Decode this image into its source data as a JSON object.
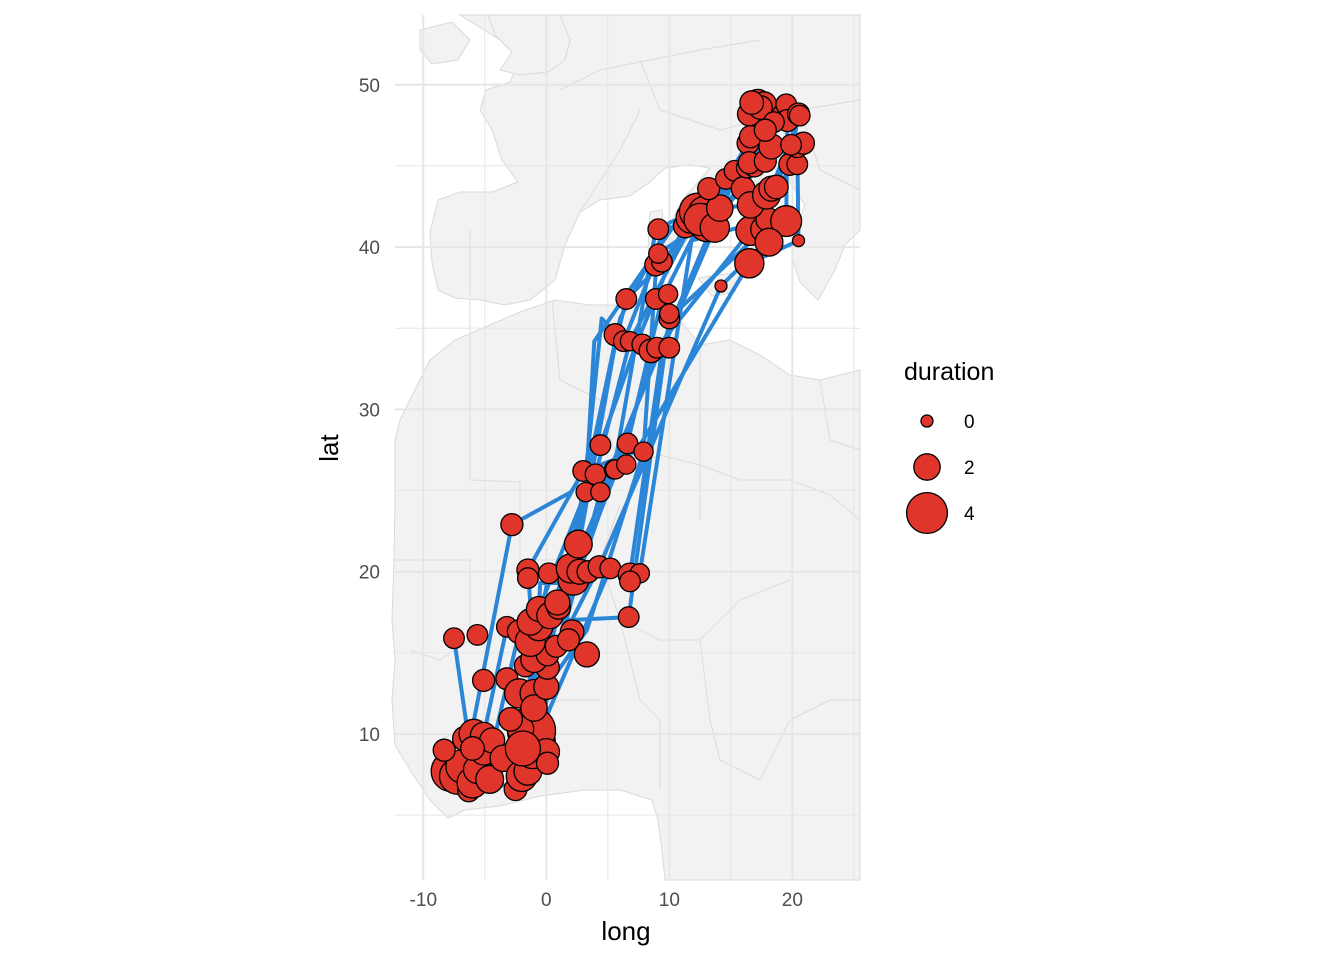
{
  "chart_data": {
    "type": "scatter",
    "subtype": "map with migration tracks",
    "xlabel": "long",
    "ylabel": "lat",
    "xlim": [
      -12.3,
      25.5
    ],
    "ylim": [
      1.0,
      54.3
    ],
    "x_ticks": [
      -10,
      0,
      10,
      20
    ],
    "x_tick_labels": [
      "-10",
      "0",
      "10",
      "20"
    ],
    "y_ticks": [
      10,
      20,
      30,
      40,
      50
    ],
    "y_tick_labels": [
      "10",
      "20",
      "30",
      "40",
      "50"
    ],
    "grid": true,
    "background": "light grey land, white sea",
    "colors": {
      "point_fill": "#e0352b",
      "point_stroke": "#000000",
      "track_line": "#2b86d8",
      "land": "#f2f2f2",
      "border": "#d9d9d9",
      "grid": "#e6e6e6"
    },
    "size_variable": "duration",
    "legend": {
      "title": "duration",
      "position": "right",
      "entries": [
        {
          "label": "0",
          "value": 0
        },
        {
          "label": "2",
          "value": 2
        },
        {
          "label": "4",
          "value": 4
        }
      ]
    },
    "tracks": [
      [
        [
          -1.4,
          8.8
        ],
        [
          -1.0,
          14.6
        ],
        [
          0.3,
          17.3
        ],
        [
          4.0,
          26.0
        ],
        [
          6.8,
          34.2
        ],
        [
          11.9,
          41.5
        ],
        [
          16.3,
          44.9
        ],
        [
          17.2,
          48.9
        ]
      ],
      [
        [
          -5.1,
          9.9
        ],
        [
          -3.2,
          16.6
        ],
        [
          -0.6,
          17.7
        ],
        [
          3.2,
          24.9
        ],
        [
          3.9,
          34.2
        ],
        [
          10.8,
          41.8
        ],
        [
          16.5,
          45.2
        ],
        [
          19.3,
          48.1
        ]
      ],
      [
        [
          -7.5,
          15.9
        ],
        [
          -6.3,
          9.6
        ],
        [
          -5.8,
          8.0
        ],
        [
          -1.9,
          9.1
        ],
        [
          0.9,
          18.1
        ],
        [
          5.5,
          26.3
        ],
        [
          8.9,
          41.1
        ],
        [
          13.1,
          41.5
        ],
        [
          17.8,
          45.3
        ]
      ],
      [
        [
          -6.1,
          10.0
        ],
        [
          -2.8,
          22.9
        ],
        [
          2.0,
          24.9
        ],
        [
          4.4,
          27.8
        ],
        [
          7.4,
          34.2
        ],
        [
          11.3,
          41.3
        ],
        [
          18.3,
          46.2
        ],
        [
          17.4,
          48.6
        ]
      ],
      [
        [
          -7.7,
          7.8
        ],
        [
          -2.5,
          6.6
        ],
        [
          -0.9,
          8.9
        ],
        [
          2.2,
          19.5
        ],
        [
          6.6,
          27.9
        ],
        [
          9.4,
          36.8
        ],
        [
          12.9,
          42.1
        ],
        [
          16.9,
          45.0
        ],
        [
          17.7,
          48.8
        ]
      ],
      [
        [
          -3.5,
          8.5
        ],
        [
          0.0,
          12.9
        ],
        [
          3.3,
          16.4
        ],
        [
          7.9,
          27.4
        ],
        [
          9.0,
          39.6
        ],
        [
          13.1,
          41.4
        ],
        [
          16.0,
          43.6
        ],
        [
          16.5,
          48.2
        ]
      ],
      [
        [
          -6.0,
          7.0
        ],
        [
          -2.1,
          10.3
        ],
        [
          0.2,
          19.9
        ],
        [
          6.8,
          19.8
        ],
        [
          9.4,
          33.6
        ],
        [
          13.7,
          41.2
        ],
        [
          16.6,
          46.8
        ],
        [
          19.5,
          48.8
        ]
      ],
      [
        [
          -6.3,
          6.5
        ],
        [
          -1.1,
          8.9
        ],
        [
          -1.3,
          16.9
        ],
        [
          6.7,
          17.2
        ],
        [
          10.0,
          35.6
        ],
        [
          17.7,
          41.1
        ],
        [
          18.3,
          43.6
        ],
        [
          20.6,
          48.1
        ]
      ],
      [
        [
          -5.1,
          8.9
        ],
        [
          -0.6,
          10.0
        ],
        [
          5.2,
          20.2
        ],
        [
          7.6,
          19.9
        ],
        [
          11.8,
          40.4
        ],
        [
          18.0,
          41.7
        ],
        [
          18.7,
          43.7
        ],
        [
          19.9,
          46.3
        ]
      ],
      [
        [
          -0.6,
          10.6
        ],
        [
          4.4,
          24.9
        ],
        [
          14.1,
          42.4
        ],
        [
          16.6,
          42.6
        ],
        [
          19.8,
          45.1
        ],
        [
          20.5,
          48.2
        ]
      ],
      [
        [
          -1.5,
          7.7
        ],
        [
          -0.6,
          16.6
        ],
        [
          2.7,
          20.0
        ],
        [
          9.0,
          33.8
        ],
        [
          16.6,
          41.0
        ],
        [
          17.9,
          43.2
        ],
        [
          20.4,
          45.1
        ],
        [
          20.9,
          46.4
        ]
      ],
      [
        [
          -2.0,
          7.4
        ],
        [
          0.1,
          14.1
        ],
        [
          4.3,
          20.3
        ],
        [
          14.2,
          37.6
        ],
        [
          19.5,
          41.6
        ],
        [
          19.6,
          47.8
        ]
      ],
      [
        [
          -0.5,
          9.6
        ],
        [
          -1.5,
          20.1
        ],
        [
          3.0,
          26.2
        ],
        [
          7.3,
          27.4
        ],
        [
          16.5,
          39.0
        ],
        [
          20.5,
          40.4
        ],
        [
          20.4,
          46.2
        ]
      ],
      [
        [
          -4.2,
          9.8
        ],
        [
          -2.2,
          16.3
        ],
        [
          1.0,
          17.8
        ],
        [
          6.0,
          35.6
        ],
        [
          10.0,
          41.5
        ],
        [
          12.3,
          42.2
        ],
        [
          15.3,
          44.7
        ]
      ],
      [
        [
          -2.8,
          6.5
        ],
        [
          0.1,
          14.9
        ],
        [
          2.6,
          21.7
        ],
        [
          4.5,
          35.6
        ],
        [
          6.3,
          34.2
        ],
        [
          9.1,
          39.6
        ],
        [
          13.0,
          41.6
        ],
        [
          14.6,
          44.2
        ],
        [
          16.4,
          46.4
        ]
      ],
      [
        [
          -1.0,
          12.5
        ],
        [
          -0.5,
          19.3
        ],
        [
          2.1,
          19.3
        ],
        [
          5.6,
          34.0
        ],
        [
          6.5,
          36.8
        ],
        [
          9.6,
          39.1
        ],
        [
          13.2,
          43.6
        ]
      ]
    ],
    "points": [
      {
        "long": -7.7,
        "lat": 7.7,
        "duration": 4.0
      },
      {
        "long": -7.2,
        "lat": 7.4,
        "duration": 3.4
      },
      {
        "long": -6.8,
        "lat": 8.0,
        "duration": 3.0
      },
      {
        "long": -6.3,
        "lat": 6.5,
        "duration": 1.4
      },
      {
        "long": -6.0,
        "lat": 7.0,
        "duration": 2.6
      },
      {
        "long": -5.6,
        "lat": 7.8,
        "duration": 2.2
      },
      {
        "long": -5.1,
        "lat": 8.9,
        "duration": 2.0
      },
      {
        "long": -6.6,
        "lat": 9.7,
        "duration": 1.8
      },
      {
        "long": -5.9,
        "lat": 10.0,
        "duration": 2.4
      },
      {
        "long": -5.1,
        "lat": 9.9,
        "duration": 2.0
      },
      {
        "long": -4.4,
        "lat": 9.6,
        "duration": 1.8
      },
      {
        "long": -4.6,
        "lat": 7.2,
        "duration": 2.2
      },
      {
        "long": -3.5,
        "lat": 8.5,
        "duration": 2.0
      },
      {
        "long": -2.5,
        "lat": 6.6,
        "duration": 1.5
      },
      {
        "long": -2.0,
        "lat": 7.4,
        "duration": 2.6
      },
      {
        "long": -1.5,
        "lat": 7.7,
        "duration": 2.2
      },
      {
        "long": -1.1,
        "lat": 8.9,
        "duration": 3.0
      },
      {
        "long": -0.5,
        "lat": 9.6,
        "duration": 2.5
      },
      {
        "long": -0.6,
        "lat": 10.6,
        "duration": 2.2
      },
      {
        "long": -1.2,
        "lat": 10.2,
        "duration": 5.0
      },
      {
        "long": -2.1,
        "lat": 10.3,
        "duration": 2.0
      },
      {
        "long": -2.9,
        "lat": 10.9,
        "duration": 1.6
      },
      {
        "long": 0.0,
        "lat": 8.9,
        "duration": 2.0
      },
      {
        "long": 0.1,
        "lat": 8.2,
        "duration": 1.4
      },
      {
        "long": -1.9,
        "lat": 9.1,
        "duration": 3.2
      },
      {
        "long": -6.0,
        "lat": 9.1,
        "duration": 1.6
      },
      {
        "long": -8.3,
        "lat": 9.0,
        "duration": 1.4
      },
      {
        "long": -7.5,
        "lat": 15.9,
        "duration": 1.2
      },
      {
        "long": -5.6,
        "lat": 16.1,
        "duration": 1.2
      },
      {
        "long": -5.1,
        "lat": 13.3,
        "duration": 1.4
      },
      {
        "long": -3.2,
        "lat": 13.4,
        "duration": 1.4
      },
      {
        "long": -2.2,
        "lat": 12.5,
        "duration": 2.4
      },
      {
        "long": -1.0,
        "lat": 12.5,
        "duration": 2.2
      },
      {
        "long": -1.0,
        "lat": 11.6,
        "duration": 2.0
      },
      {
        "long": 0.0,
        "lat": 12.9,
        "duration": 1.8
      },
      {
        "long": 0.1,
        "lat": 14.1,
        "duration": 1.6
      },
      {
        "long": -1.7,
        "lat": 14.2,
        "duration": 1.4
      },
      {
        "long": -1.0,
        "lat": 14.6,
        "duration": 2.0
      },
      {
        "long": 0.1,
        "lat": 14.9,
        "duration": 1.5
      },
      {
        "long": -3.2,
        "lat": 16.6,
        "duration": 1.2
      },
      {
        "long": -2.2,
        "lat": 16.3,
        "duration": 1.6
      },
      {
        "long": -1.3,
        "lat": 15.7,
        "duration": 2.5
      },
      {
        "long": -0.6,
        "lat": 16.6,
        "duration": 2.2
      },
      {
        "long": -1.3,
        "lat": 16.9,
        "duration": 2.0
      },
      {
        "long": -0.6,
        "lat": 17.7,
        "duration": 1.8
      },
      {
        "long": 0.3,
        "lat": 17.3,
        "duration": 2.0
      },
      {
        "long": 1.0,
        "lat": 17.8,
        "duration": 1.6
      },
      {
        "long": 0.9,
        "lat": 18.1,
        "duration": 1.8
      },
      {
        "long": 0.2,
        "lat": 19.9,
        "duration": 1.2
      },
      {
        "long": 0.8,
        "lat": 15.4,
        "duration": 1.4
      },
      {
        "long": 2.1,
        "lat": 16.3,
        "duration": 1.6
      },
      {
        "long": 3.3,
        "lat": 14.9,
        "duration": 1.8
      },
      {
        "long": 1.8,
        "lat": 15.8,
        "duration": 1.4
      },
      {
        "long": -1.5,
        "lat": 20.1,
        "duration": 1.4
      },
      {
        "long": -1.5,
        "lat": 19.6,
        "duration": 1.2
      },
      {
        "long": -2.8,
        "lat": 22.9,
        "duration": 1.4
      },
      {
        "long": 2.2,
        "lat": 19.5,
        "duration": 2.6
      },
      {
        "long": 2.0,
        "lat": 20.2,
        "duration": 2.4
      },
      {
        "long": 2.6,
        "lat": 21.7,
        "duration": 2.2
      },
      {
        "long": 2.7,
        "lat": 20.0,
        "duration": 1.8
      },
      {
        "long": 3.4,
        "lat": 20.0,
        "duration": 1.4
      },
      {
        "long": 4.3,
        "lat": 20.3,
        "duration": 1.4
      },
      {
        "long": 5.2,
        "lat": 20.2,
        "duration": 1.2
      },
      {
        "long": 6.8,
        "lat": 19.8,
        "duration": 1.6
      },
      {
        "long": 7.6,
        "lat": 19.9,
        "duration": 1.0
      },
      {
        "long": 6.8,
        "lat": 19.4,
        "duration": 1.2
      },
      {
        "long": 6.7,
        "lat": 17.2,
        "duration": 1.2
      },
      {
        "long": 3.2,
        "lat": 24.9,
        "duration": 1.0
      },
      {
        "long": 3.0,
        "lat": 26.2,
        "duration": 1.2
      },
      {
        "long": 4.0,
        "lat": 26.0,
        "duration": 1.2
      },
      {
        "long": 4.4,
        "lat": 24.9,
        "duration": 1.0
      },
      {
        "long": 4.4,
        "lat": 27.8,
        "duration": 1.2
      },
      {
        "long": 5.5,
        "lat": 26.3,
        "duration": 1.0
      },
      {
        "long": 5.6,
        "lat": 26.3,
        "duration": 1.0
      },
      {
        "long": 6.6,
        "lat": 27.9,
        "duration": 1.2
      },
      {
        "long": 6.5,
        "lat": 26.6,
        "duration": 1.0
      },
      {
        "long": 7.9,
        "lat": 27.4,
        "duration": 1.0
      },
      {
        "long": 5.6,
        "lat": 34.6,
        "duration": 1.4
      },
      {
        "long": 6.3,
        "lat": 34.2,
        "duration": 1.2
      },
      {
        "long": 6.8,
        "lat": 34.2,
        "duration": 1.0
      },
      {
        "long": 7.8,
        "lat": 34.0,
        "duration": 1.2
      },
      {
        "long": 8.5,
        "lat": 33.6,
        "duration": 1.6
      },
      {
        "long": 9.0,
        "lat": 33.8,
        "duration": 1.2
      },
      {
        "long": 10.0,
        "lat": 33.8,
        "duration": 1.2
      },
      {
        "long": 6.5,
        "lat": 36.8,
        "duration": 1.2
      },
      {
        "long": 8.9,
        "lat": 36.8,
        "duration": 1.2
      },
      {
        "long": 9.9,
        "lat": 37.1,
        "duration": 1.0
      },
      {
        "long": 10.0,
        "lat": 35.6,
        "duration": 1.2
      },
      {
        "long": 10.0,
        "lat": 35.9,
        "duration": 1.0
      },
      {
        "long": 8.9,
        "lat": 38.9,
        "duration": 1.4
      },
      {
        "long": 9.4,
        "lat": 39.1,
        "duration": 1.2
      },
      {
        "long": 9.1,
        "lat": 39.6,
        "duration": 1.0
      },
      {
        "long": 9.1,
        "lat": 41.1,
        "duration": 1.2
      },
      {
        "long": 11.3,
        "lat": 41.3,
        "duration": 1.6
      },
      {
        "long": 11.8,
        "lat": 41.8,
        "duration": 2.6
      },
      {
        "long": 12.3,
        "lat": 42.2,
        "duration": 3.4
      },
      {
        "long": 12.9,
        "lat": 42.1,
        "duration": 3.0
      },
      {
        "long": 13.1,
        "lat": 41.5,
        "duration": 3.6
      },
      {
        "long": 12.5,
        "lat": 41.7,
        "duration": 2.8
      },
      {
        "long": 13.7,
        "lat": 41.2,
        "duration": 2.4
      },
      {
        "long": 14.1,
        "lat": 42.4,
        "duration": 2.0
      },
      {
        "long": 13.2,
        "lat": 43.6,
        "duration": 1.4
      },
      {
        "long": 14.6,
        "lat": 44.2,
        "duration": 1.2
      },
      {
        "long": 14.2,
        "lat": 37.6,
        "duration": 0.0
      },
      {
        "long": 15.3,
        "lat": 44.7,
        "duration": 1.2
      },
      {
        "long": 16.5,
        "lat": 39.0,
        "duration": 2.4
      },
      {
        "long": 16.6,
        "lat": 41.0,
        "duration": 2.4
      },
      {
        "long": 17.7,
        "lat": 41.1,
        "duration": 2.0
      },
      {
        "long": 18.0,
        "lat": 41.7,
        "duration": 1.6
      },
      {
        "long": 19.5,
        "lat": 41.6,
        "duration": 2.6
      },
      {
        "long": 20.5,
        "lat": 40.4,
        "duration": 0.0
      },
      {
        "long": 18.1,
        "lat": 40.3,
        "duration": 2.2
      },
      {
        "long": 16.0,
        "lat": 43.6,
        "duration": 1.6
      },
      {
        "long": 16.6,
        "lat": 42.6,
        "duration": 2.0
      },
      {
        "long": 17.9,
        "lat": 43.2,
        "duration": 2.2
      },
      {
        "long": 18.3,
        "lat": 43.6,
        "duration": 1.8
      },
      {
        "long": 18.7,
        "lat": 43.7,
        "duration": 1.6
      },
      {
        "long": 16.4,
        "lat": 46.4,
        "duration": 1.4
      },
      {
        "long": 16.6,
        "lat": 46.8,
        "duration": 1.4
      },
      {
        "long": 16.3,
        "lat": 44.9,
        "duration": 1.2
      },
      {
        "long": 16.9,
        "lat": 45.0,
        "duration": 1.4
      },
      {
        "long": 16.5,
        "lat": 45.2,
        "duration": 1.4
      },
      {
        "long": 17.8,
        "lat": 45.3,
        "duration": 1.4
      },
      {
        "long": 18.3,
        "lat": 46.2,
        "duration": 1.8
      },
      {
        "long": 19.8,
        "lat": 45.1,
        "duration": 1.4
      },
      {
        "long": 20.4,
        "lat": 45.1,
        "duration": 1.2
      },
      {
        "long": 20.4,
        "lat": 46.2,
        "duration": 1.4
      },
      {
        "long": 20.9,
        "lat": 46.4,
        "duration": 1.4
      },
      {
        "long": 19.9,
        "lat": 46.3,
        "duration": 1.2
      },
      {
        "long": 16.5,
        "lat": 48.2,
        "duration": 1.6
      },
      {
        "long": 17.2,
        "lat": 48.9,
        "duration": 2.0
      },
      {
        "long": 17.7,
        "lat": 48.8,
        "duration": 1.8
      },
      {
        "long": 17.4,
        "lat": 48.6,
        "duration": 1.6
      },
      {
        "long": 16.7,
        "lat": 48.9,
        "duration": 1.6
      },
      {
        "long": 19.3,
        "lat": 48.1,
        "duration": 1.6
      },
      {
        "long": 19.5,
        "lat": 48.8,
        "duration": 1.2
      },
      {
        "long": 19.6,
        "lat": 47.8,
        "duration": 1.4
      },
      {
        "long": 20.5,
        "lat": 48.2,
        "duration": 1.4
      },
      {
        "long": 20.6,
        "lat": 48.1,
        "duration": 1.2
      },
      {
        "long": 18.5,
        "lat": 47.7,
        "duration": 1.2
      },
      {
        "long": 17.8,
        "lat": 47.2,
        "duration": 1.4
      }
    ]
  }
}
